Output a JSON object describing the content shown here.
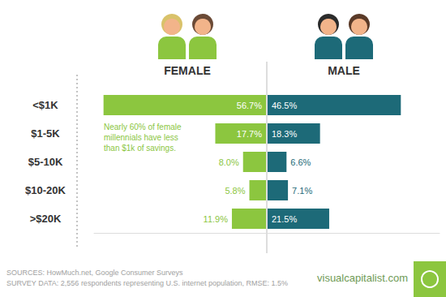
{
  "chart_data": {
    "type": "bar",
    "orientation": "horizontal",
    "categories": [
      "<$1K",
      "$1-5K",
      "$5-10K",
      "$10-20K",
      ">$20K"
    ],
    "series": [
      {
        "name": "FEMALE",
        "color": "#8cc63f",
        "values": [
          56.7,
          17.7,
          8.0,
          5.8,
          11.9
        ],
        "value_labels": [
          "56.7%",
          "17.7%",
          "8.0%",
          "5.8%",
          "11.9%"
        ]
      },
      {
        "name": "MALE",
        "color": "#1d6a78",
        "values": [
          46.5,
          18.3,
          6.6,
          7.1,
          21.5
        ],
        "value_labels": [
          "46.5%",
          "18.3%",
          "6.6%",
          "7.1%",
          "21.5%"
        ]
      }
    ],
    "xlim": [
      0,
      60
    ],
    "tick_labels": "y",
    "data_labels": true,
    "grid": false,
    "annotations": [
      "Nearly 60% of female\nmillennials have less\nthan $1k of savings.",
      "SOURCES: HowMuch.net, Google Consumer Surveys",
      "SURVEY DATA: 2,556 respondents representing U.S. internet population, RMSE: 1.5%",
      "visualcapitalist.com"
    ]
  }
}
